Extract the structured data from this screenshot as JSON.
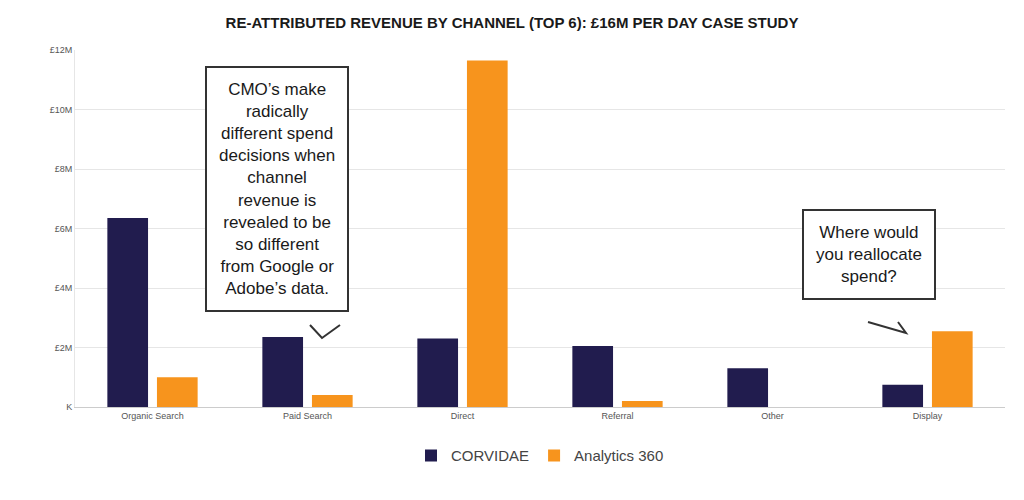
{
  "chart_data": {
    "type": "bar",
    "title": "RE-ATTRIBUTED REVENUE BY CHANNEL (TOP 6): £16M PER DAY CASE STUDY",
    "categories": [
      "Organic Search",
      "Paid Search",
      "Direct",
      "Referral",
      "Other",
      "Display"
    ],
    "series": [
      {
        "name": "CORVIDAE",
        "color": "#211c4e",
        "values": [
          6.35,
          2.35,
          2.3,
          2.05,
          1.3,
          0.75
        ]
      },
      {
        "name": "Analytics 360",
        "color": "#f7941d",
        "values": [
          1.0,
          0.4,
          11.65,
          0.2,
          null,
          2.55
        ]
      }
    ],
    "ylim": [
      0,
      12
    ],
    "yticks": [
      {
        "value": 0,
        "label": "K"
      },
      {
        "value": 2,
        "label": "£2M"
      },
      {
        "value": 4,
        "label": "£4M"
      },
      {
        "value": 6,
        "label": "£6M"
      },
      {
        "value": 8,
        "label": "£8M"
      },
      {
        "value": 10,
        "label": "£10M"
      },
      {
        "value": 12,
        "label": "£12M"
      }
    ],
    "grid": true,
    "legend": "bottom",
    "annotations": [
      "CMO’s make\nradically\ndifferent spend\ndecisions when\nchannel\nrevenue is\nrevealed to be\nso different\nfrom Google or\nAdobe’s data.",
      "Where would\nyou reallocate\nspend?"
    ]
  }
}
